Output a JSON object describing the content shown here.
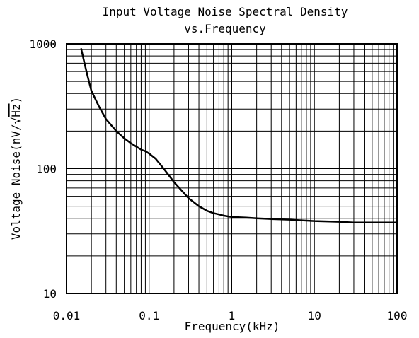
{
  "chart_data": {
    "type": "line",
    "title": "Input Voltage Noise Spectral Density",
    "subtitle": "vs.Frequency",
    "xlabel": "Frequency(kHz)",
    "ylabel_prefix": "Voltage Noise(nV/",
    "ylabel_radicand": "Hz",
    "ylabel_suffix": ")",
    "x_scale": "log",
    "y_scale": "log",
    "xlim": [
      0.01,
      100
    ],
    "ylim": [
      10,
      1000
    ],
    "grid": true,
    "x_ticks": [
      {
        "value": 0.01,
        "label": "0.01"
      },
      {
        "value": 0.1,
        "label": "0.1"
      },
      {
        "value": 1,
        "label": "1"
      },
      {
        "value": 10,
        "label": "10"
      },
      {
        "value": 100,
        "label": "100"
      }
    ],
    "y_ticks": [
      {
        "value": 10,
        "label": "10"
      },
      {
        "value": 100,
        "label": "100"
      },
      {
        "value": 1000,
        "label": "1000"
      }
    ],
    "series": [
      {
        "color": "#000000",
        "x": [
          0.015,
          0.0165,
          0.018,
          0.02,
          0.025,
          0.03,
          0.04,
          0.05,
          0.06,
          0.07,
          0.08,
          0.09,
          0.1,
          0.12,
          0.15,
          0.2,
          0.3,
          0.4,
          0.5,
          0.6,
          0.7,
          0.8,
          1,
          1.5,
          2,
          3,
          5,
          7,
          10,
          20,
          30,
          50,
          70,
          100
        ],
        "y": [
          920,
          700,
          550,
          420,
          310,
          250,
          200,
          175,
          160,
          150,
          142,
          138,
          132,
          120,
          100,
          78,
          58,
          50,
          46,
          44,
          43,
          42,
          41,
          40.5,
          40,
          39.5,
          39,
          38.5,
          38,
          37.5,
          37,
          37,
          37,
          37
        ]
      }
    ]
  }
}
